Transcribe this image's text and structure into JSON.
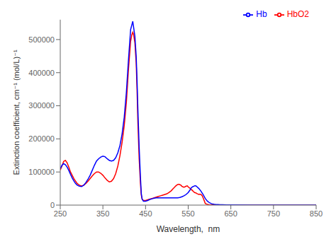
{
  "chart_data": {
    "type": "line",
    "xlabel": "Wavelength,  nm",
    "ylabel": "Extinction coefficient, cm⁻¹ (mol/L)⁻¹",
    "xlim": [
      250,
      850
    ],
    "ylim": [
      0,
      560000
    ],
    "xticks": [
      250,
      350,
      450,
      550,
      650,
      750,
      850
    ],
    "yticks": [
      0,
      100000,
      200000,
      300000,
      400000,
      500000
    ],
    "grid": false,
    "legend": "upper right",
    "series": [
      {
        "name": "HbO2",
        "color": "#ff0000",
        "x": [
          250,
          254,
          258,
          262,
          266,
          270,
          274,
          278,
          282,
          286,
          290,
          295,
          300,
          305,
          310,
          315,
          320,
          325,
          330,
          335,
          340,
          345,
          350,
          355,
          360,
          365,
          370,
          375,
          380,
          385,
          390,
          395,
          400,
          405,
          410,
          415,
          418,
          420,
          422,
          425,
          428,
          430,
          432,
          435,
          438,
          440,
          442,
          445,
          450,
          455,
          460,
          465,
          470,
          475,
          480,
          485,
          490,
          495,
          500,
          505,
          510,
          515,
          518,
          520,
          523,
          525,
          528,
          530,
          533,
          535,
          538,
          540,
          542,
          545,
          548,
          550,
          555,
          560,
          563,
          565,
          568,
          570,
          572,
          575,
          577,
          580,
          583,
          585,
          588,
          590,
          595,
          600,
          605,
          610,
          615,
          620,
          625,
          630,
          640,
          650,
          700,
          800,
          850
        ],
        "values": [
          106000,
          118000,
          132000,
          135000,
          128000,
          115000,
          100000,
          90000,
          80000,
          72000,
          65000,
          60000,
          58000,
          60000,
          65000,
          72000,
          80000,
          88000,
          95000,
          100000,
          100000,
          96000,
          90000,
          82000,
          75000,
          70000,
          72000,
          80000,
          95000,
          118000,
          150000,
          190000,
          240000,
          310000,
          410000,
          495000,
          515000,
          522000,
          515000,
          490000,
          430000,
          350000,
          250000,
          140000,
          65000,
          30000,
          18000,
          14000,
          14000,
          16000,
          18000,
          20000,
          22000,
          24000,
          26000,
          28000,
          30000,
          32000,
          34000,
          38000,
          43000,
          50000,
          54000,
          57000,
          60000,
          62000,
          63000,
          62000,
          60000,
          57000,
          55000,
          54000,
          55000,
          57000,
          58000,
          55000,
          50000,
          44000,
          40000,
          38000,
          37000,
          35000,
          34000,
          32000,
          33000,
          32000,
          28000,
          22000,
          12000,
          5000,
          2000,
          800,
          500,
          300,
          200,
          120,
          80,
          50,
          20,
          10,
          5,
          2,
          1
        ]
      },
      {
        "name": "Hb",
        "color": "#0000ff",
        "x": [
          250,
          254,
          258,
          262,
          266,
          270,
          274,
          278,
          282,
          286,
          290,
          295,
          300,
          305,
          310,
          315,
          320,
          325,
          330,
          335,
          340,
          345,
          350,
          355,
          360,
          365,
          370,
          375,
          380,
          385,
          390,
          395,
          400,
          405,
          410,
          415,
          420,
          425,
          428,
          430,
          432,
          435,
          438,
          440,
          442,
          445,
          450,
          455,
          460,
          465,
          470,
          475,
          480,
          485,
          490,
          495,
          500,
          505,
          510,
          515,
          520,
          525,
          530,
          535,
          540,
          545,
          550,
          555,
          557,
          560,
          563,
          565,
          568,
          570,
          575,
          580,
          585,
          590,
          595,
          600,
          605,
          610,
          615,
          620,
          625,
          630,
          640,
          650,
          700,
          800,
          850
        ],
        "values": [
          110000,
          120000,
          125000,
          122000,
          115000,
          105000,
          93000,
          82000,
          73000,
          65000,
          60000,
          57000,
          56000,
          60000,
          68000,
          78000,
          90000,
          105000,
          120000,
          133000,
          140000,
          145000,
          148000,
          146000,
          140000,
          135000,
          133000,
          135000,
          143000,
          158000,
          180000,
          215000,
          265000,
          340000,
          440000,
          530000,
          555000,
          510000,
          450000,
          380000,
          290000,
          175000,
          85000,
          35000,
          18000,
          12000,
          12000,
          14000,
          17000,
          19000,
          21000,
          22000,
          22000,
          22000,
          22000,
          22000,
          22000,
          22000,
          22000,
          22000,
          22000,
          22000,
          23000,
          25000,
          28000,
          32000,
          38000,
          47000,
          52000,
          55000,
          57000,
          58000,
          58000,
          56000,
          50000,
          42000,
          32000,
          20000,
          12000,
          7000,
          4000,
          2500,
          1800,
          1400,
          1100,
          1000,
          700,
          500,
          200,
          50,
          20
        ]
      }
    ]
  }
}
